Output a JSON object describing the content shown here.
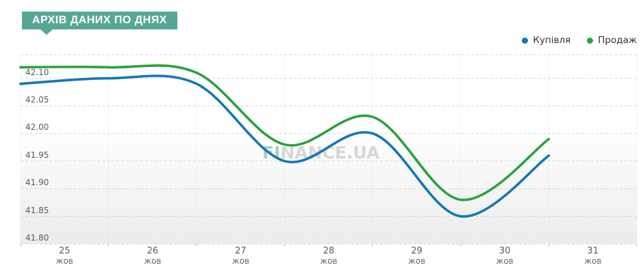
{
  "page": {
    "title_badge": "АРХІВ ДАНИХ ПО ДНЯХ"
  },
  "watermark": {
    "prefix": "FI",
    "rest": "NANCE.UA"
  },
  "colors": {
    "badge_bg": "#57a796",
    "grid": "#d6d6d6",
    "tick": "#bdbdbd",
    "buy_line": "#1478b4",
    "sell_line": "#2aa23c"
  },
  "chart_data": {
    "type": "line",
    "style": "smooth-spline",
    "title": "АРХІВ ДАНИХ ПО ДНЯХ",
    "categories": [
      "25 жов",
      "26 жов",
      "27 жов",
      "28 жов",
      "29 жов",
      "30 жов",
      "31 жов"
    ],
    "x_labels": [
      {
        "day": "25",
        "month": "жов"
      },
      {
        "day": "26",
        "month": "жов"
      },
      {
        "day": "27",
        "month": "жов"
      },
      {
        "day": "28",
        "month": "жов"
      },
      {
        "day": "29",
        "month": "жов"
      },
      {
        "day": "30",
        "month": "жов"
      },
      {
        "day": "31",
        "month": "жов"
      }
    ],
    "series": [
      {
        "name": "Купівля",
        "color": "#1478b4",
        "values": [
          42.09,
          42.1,
          42.09,
          41.95,
          42.0,
          41.85,
          41.96
        ]
      },
      {
        "name": "Продаж",
        "color": "#2aa23c",
        "values": [
          42.12,
          42.12,
          42.11,
          41.98,
          42.03,
          41.88,
          41.99
        ]
      }
    ],
    "y_ticks": [
      41.8,
      41.85,
      41.9,
      41.95,
      42.0,
      42.05,
      42.1
    ],
    "ylim": [
      41.8,
      42.14
    ],
    "grid": "dashed",
    "legend_position": "top-right"
  }
}
